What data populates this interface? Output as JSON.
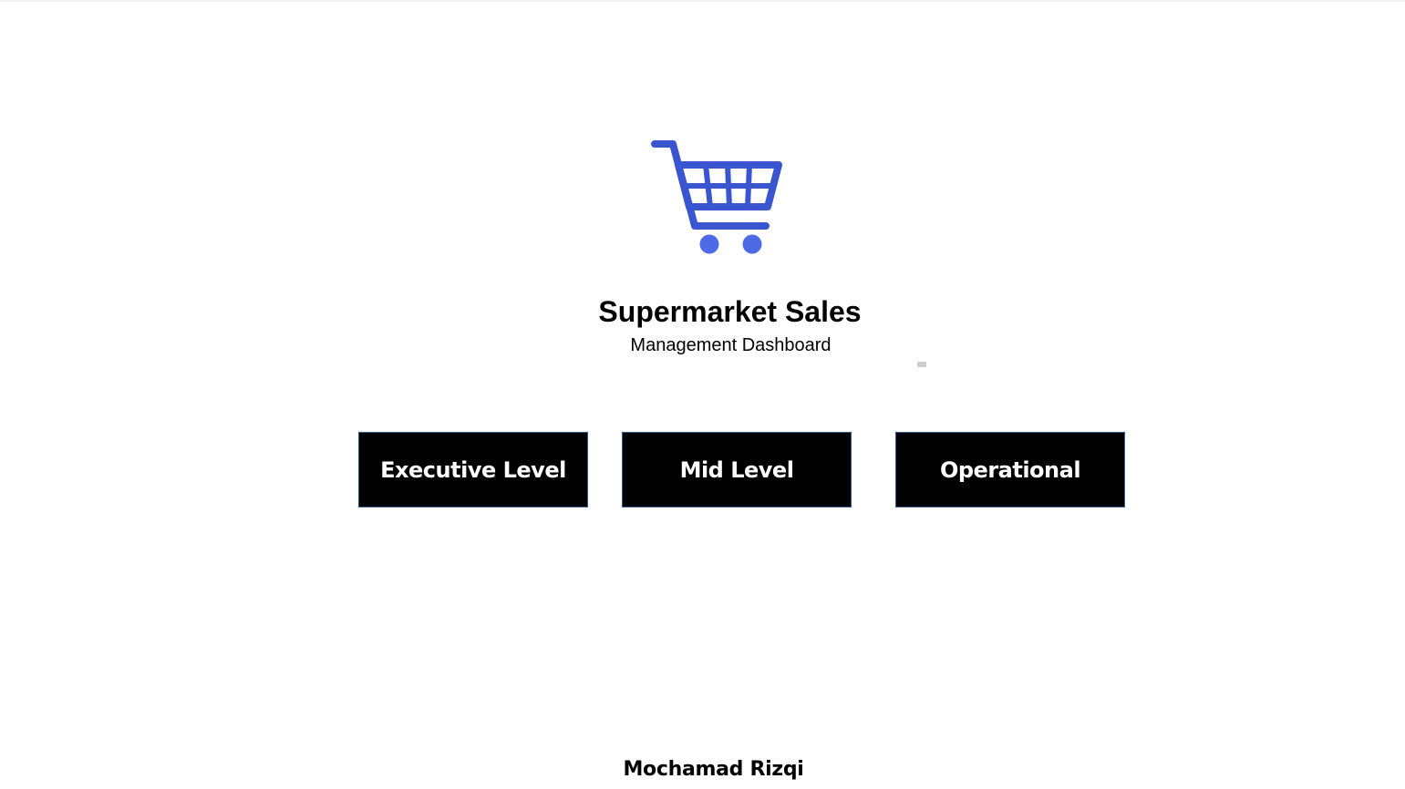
{
  "header": {
    "icon": "shopping-cart-icon",
    "title": "Supermarket Sales",
    "subtitle": "Management Dashboard"
  },
  "navigation": {
    "buttons": [
      {
        "label": "Executive Level"
      },
      {
        "label": "Mid Level"
      },
      {
        "label": "Operational"
      }
    ]
  },
  "footer": {
    "author": "Mochamad Rizqi"
  },
  "colors": {
    "cart_primary": "#3a55d0",
    "cart_wheels": "#4f6ae6",
    "button_background": "#000000",
    "button_text": "#ffffff",
    "button_border": "#2f5d8a"
  }
}
